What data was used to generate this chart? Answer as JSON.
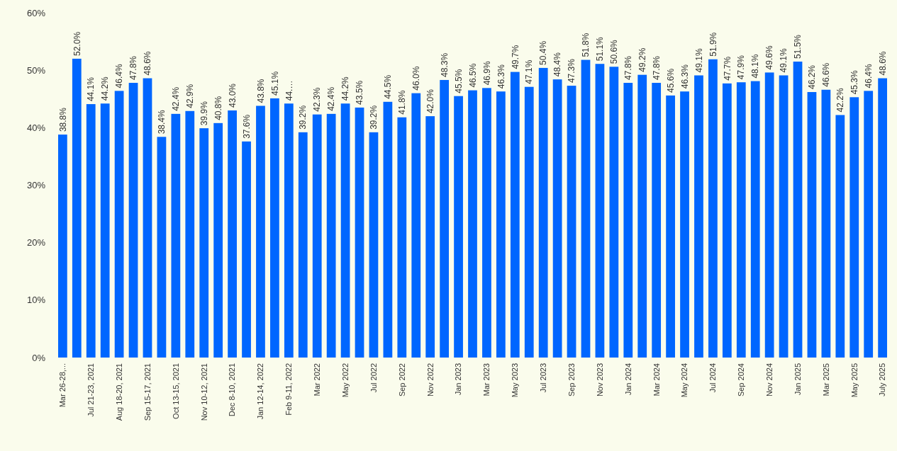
{
  "chart_data": {
    "type": "bar",
    "categories": [
      "Mar 26-28,...",
      null,
      "Jul 21-23, 2021",
      null,
      "Aug 18-20, 2021",
      null,
      "Sep 15-17, 2021",
      null,
      "Oct 13-15, 2021",
      null,
      "Nov 10-12, 2021",
      null,
      "Dec 8-10, 2021",
      null,
      "Jan 12-14, 2022",
      null,
      "Feb 9-11, 2022",
      null,
      "Mar 2022",
      null,
      "May 2022",
      null,
      "Jul 2022",
      null,
      "Sep 2022",
      null,
      "Nov 2022",
      null,
      "Jan 2023",
      null,
      "Mar 2023",
      null,
      "May 2023",
      null,
      "Jul 2023",
      null,
      "Sep 2023",
      null,
      "Nov 2023",
      null,
      "Jan 2024",
      null,
      "Mar 2024",
      null,
      "May 2024",
      null,
      "Jul 2024",
      null,
      "Sep 2024",
      null,
      "Nov 2024",
      null,
      "Jan 2025",
      null,
      "Mar 2025",
      null,
      "May 2025",
      null,
      "July 2025"
    ],
    "values": [
      38.8,
      52.0,
      44.1,
      44.2,
      46.4,
      47.8,
      48.6,
      38.4,
      42.4,
      42.9,
      39.9,
      40.8,
      43.0,
      37.6,
      43.8,
      45.1,
      44.2,
      39.2,
      42.3,
      42.4,
      44.2,
      43.5,
      39.2,
      44.5,
      41.8,
      46.0,
      42.0,
      48.3,
      45.5,
      46.5,
      46.9,
      46.3,
      49.7,
      47.1,
      50.4,
      48.4,
      47.3,
      51.8,
      51.1,
      50.6,
      47.8,
      49.2,
      47.8,
      45.6,
      46.3,
      49.1,
      51.9,
      47.7,
      47.9,
      48.1,
      49.6,
      49.1,
      51.5,
      46.2,
      46.6,
      42.2,
      45.3,
      46.4,
      48.6
    ],
    "value_labels": [
      "38.8%",
      "52.0%",
      "44.1%",
      "44.2%",
      "46.4%",
      "47.8%",
      "48.6%",
      "38.4%",
      "42.4%",
      "42.9%",
      "39.9%",
      "40.8%",
      "43.0%",
      "37.6%",
      "43.8%",
      "45.1%",
      "44.…",
      "39.2%",
      "42.3%",
      "42.4%",
      "44.2%",
      "43.5%",
      "39.2%",
      "44.5%",
      "41.8%",
      "46.0%",
      "42.0%",
      "48.3%",
      "45.5%",
      "46.5%",
      "46.9%",
      "46.3%",
      "49.7%",
      "47.1%",
      "50.4%",
      "48.4%",
      "47.3%",
      "51.8%",
      "51.1%",
      "50.6%",
      "47.8%",
      "49.2%",
      "47.8%",
      "45.6%",
      "46.3%",
      "49.1%",
      "51.9%",
      "47.7%",
      "47.9%",
      "48.1%",
      "49.6%",
      "49.1%",
      "51.5%",
      "46.2%",
      "46.6%",
      "42.2%",
      "45.3%",
      "46.4%",
      "48.6%"
    ],
    "color": "#0066ff",
    "ylim": [
      0,
      60
    ],
    "yticks": [
      {
        "value": 0,
        "label": "0%"
      },
      {
        "value": 10,
        "label": "10%"
      },
      {
        "value": 20,
        "label": "20%"
      },
      {
        "value": 30,
        "label": "30%"
      },
      {
        "value": 40,
        "label": "40%"
      },
      {
        "value": 50,
        "label": "50%"
      },
      {
        "value": 60,
        "label": "60%"
      }
    ],
    "grid": false
  }
}
